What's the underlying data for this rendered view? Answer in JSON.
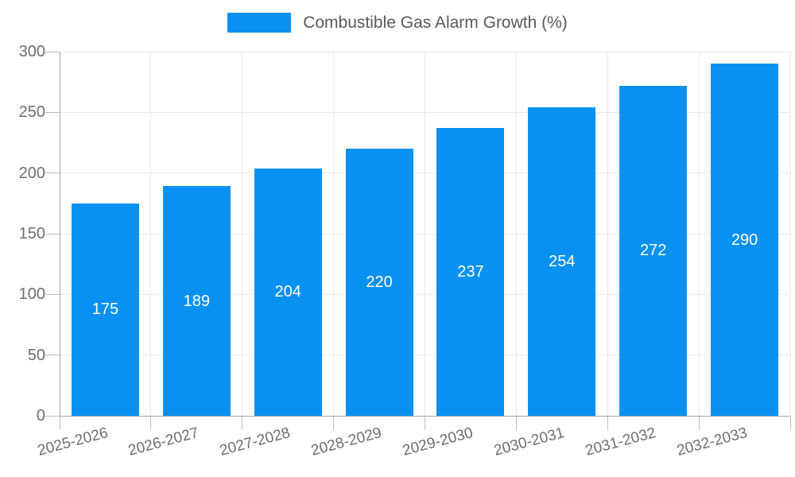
{
  "chart_data": {
    "type": "bar",
    "title": "Combustible Gas Alarm Growth (%)",
    "legend_position": "top",
    "categories": [
      "2025-2026",
      "2026-2027",
      "2027-2028",
      "2028-2029",
      "2029-2030",
      "2030-2031",
      "2031-2032",
      "2032-2033"
    ],
    "series": [
      {
        "name": "Combustible Gas Alarm Growth (%)",
        "values": [
          175,
          189,
          204,
          220,
          237,
          254,
          272,
          290
        ]
      }
    ],
    "values": [
      175,
      189,
      204,
      220,
      237,
      254,
      272,
      290
    ],
    "xlabel": "",
    "ylabel": "",
    "ylim": [
      0,
      300
    ],
    "yticks": [
      0,
      50,
      100,
      150,
      200,
      250,
      300
    ],
    "grid": "on",
    "x_tick_rotation_deg": -15,
    "colors": {
      "bar": "#0991f2",
      "gridline": "#e8e8e8",
      "axis": "#a6a6a6",
      "tick": "#bdbdbd",
      "tick_label": "#6e6e6e",
      "legend_text": "#595959",
      "value_label": "#ffffff",
      "background": "#ffffff"
    }
  }
}
